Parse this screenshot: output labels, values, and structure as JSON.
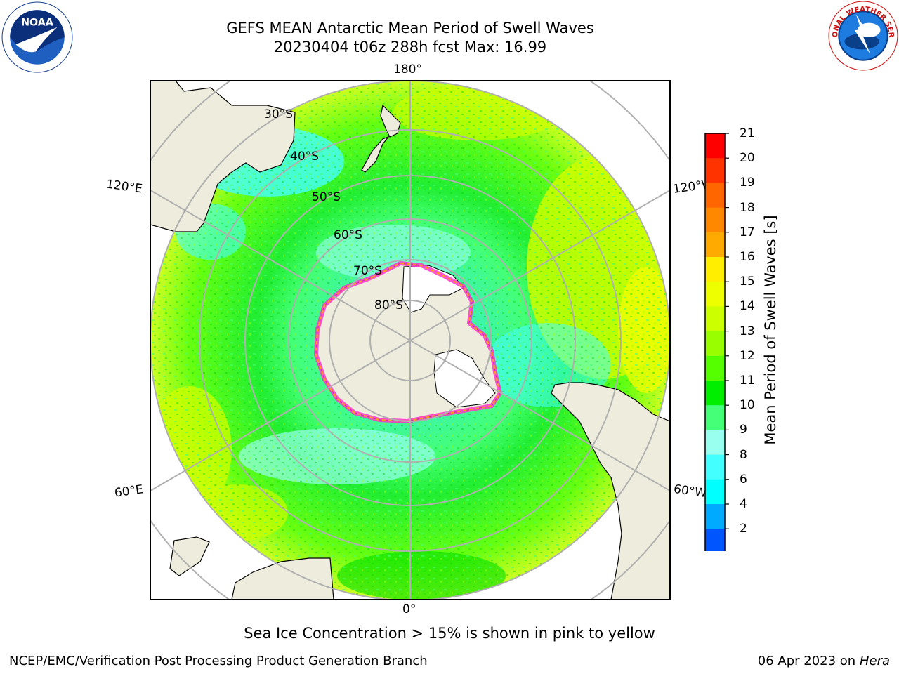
{
  "header": {
    "title_line1": "GEFS MEAN Antarctic Mean Period of Swell Waves",
    "title_line2": "20230404 t06z 288h fcst   Max: 16.99"
  },
  "logos": {
    "left": {
      "icon": "noaa-logo",
      "text": "NOAA",
      "ring_text": "NATIONAL OCEANIC AND ATMOSPHERIC ADMINISTRATION · U.S. DEPARTMENT OF COMMERCE"
    },
    "right": {
      "icon": "nws-logo",
      "ring_text": "NATIONAL WEATHER SERVICE"
    }
  },
  "map": {
    "projection": "south-polar-stereographic",
    "longitude_labels": {
      "top": "180°",
      "upper_left": "120°E",
      "upper_right": "120°W",
      "lower_left": "60°E",
      "lower_right": "60°W",
      "bottom": "0°"
    },
    "latitude_labels": [
      "30°S",
      "40°S",
      "50°S",
      "60°S",
      "70°S",
      "80°S"
    ],
    "colors": {
      "land": "#eeecdc",
      "ocean_edge_ice": "#ff33cc",
      "ice_inner": "#ffaa00",
      "grid": "#b0b0b0"
    }
  },
  "colorbar": {
    "label": "Mean Period of Swell Waves [s]",
    "ticks": [
      "21",
      "20",
      "19",
      "18",
      "17",
      "16",
      "15",
      "14",
      "13",
      "12",
      "11",
      "10",
      "9",
      "8",
      "6",
      "4",
      "2"
    ],
    "colors": [
      "#ff0000",
      "#ff3300",
      "#ff6600",
      "#ff8800",
      "#ffaa00",
      "#ffee00",
      "#eeff00",
      "#ccff00",
      "#99ff00",
      "#55ff00",
      "#00ee00",
      "#44ff77",
      "#99ffee",
      "#44ffff",
      "#00ffff",
      "#00aaff",
      "#0055ff"
    ],
    "extend_color": "#0000ee"
  },
  "footer": {
    "note": "Sea Ice Concentration > 15% is shown in pink to yellow",
    "left": "NCEP/EMC/Verification Post Processing Product Generation Branch",
    "right_date": "06 Apr 2023 on",
    "right_host": "Hera"
  }
}
